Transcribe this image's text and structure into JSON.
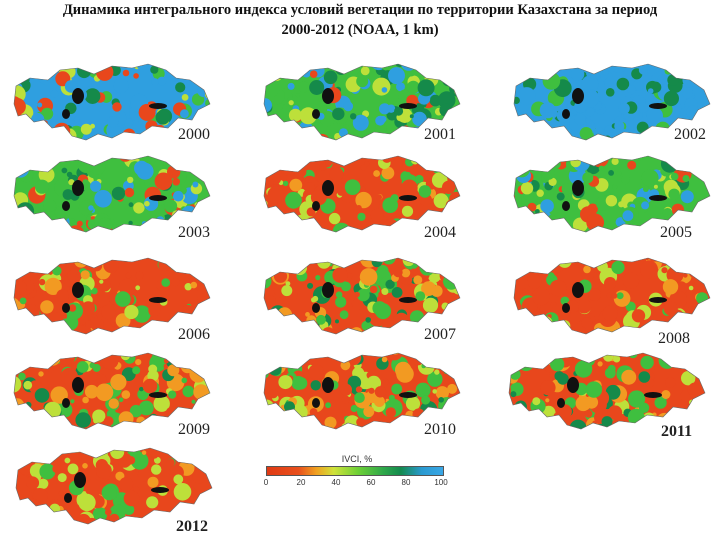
{
  "title_line1": "Динамика интегрального индекса условий вегетации по территории Казахстана за период",
  "title_line2": "2000-2012 (NOAA, 1 km)",
  "colors": {
    "red": "#e8471c",
    "orange": "#f29a22",
    "yellow_green": "#bde03a",
    "green": "#3fbf3f",
    "dark_green": "#158a4a",
    "blue": "#2f9fe0",
    "black": "#111111"
  },
  "maps": [
    {
      "year": "2000",
      "dominant": "blue-green"
    },
    {
      "year": "2001",
      "dominant": "green-blue"
    },
    {
      "year": "2002",
      "dominant": "blue"
    },
    {
      "year": "2003",
      "dominant": "green"
    },
    {
      "year": "2004",
      "dominant": "red-orange"
    },
    {
      "year": "2005",
      "dominant": "green"
    },
    {
      "year": "2006",
      "dominant": "red"
    },
    {
      "year": "2007",
      "dominant": "red-green"
    },
    {
      "year": "2008",
      "dominant": "red"
    },
    {
      "year": "2009",
      "dominant": "red-green"
    },
    {
      "year": "2010",
      "dominant": "red-green"
    },
    {
      "year": "2011",
      "dominant": "red-green"
    },
    {
      "year": "2012",
      "dominant": "red"
    }
  ],
  "legend": {
    "title": "IVCI, %",
    "ticks": [
      "0",
      "20",
      "40",
      "60",
      "80",
      "100"
    ]
  }
}
